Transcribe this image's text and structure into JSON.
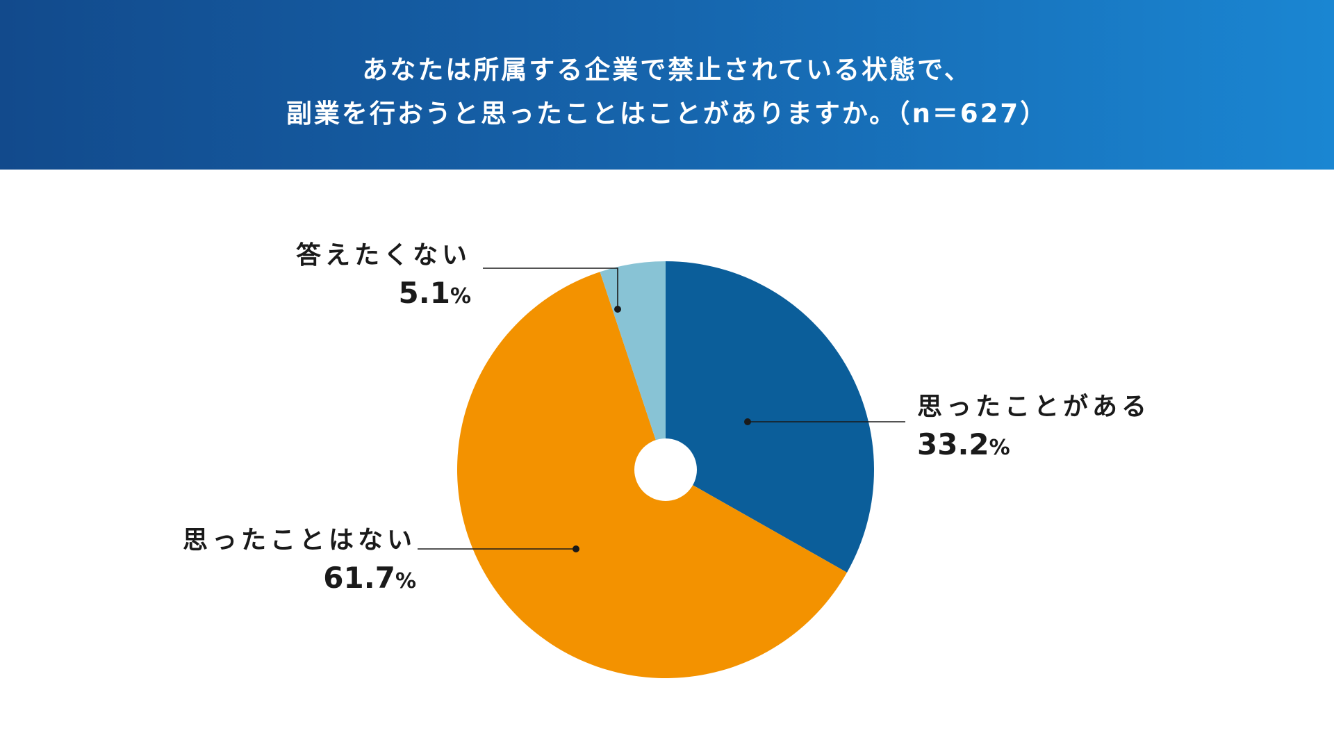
{
  "header": {
    "title_line1": "あなたは所属する企業で禁止されている状態で、",
    "title_line2": "副業を行おうと思ったことはことがありますか。（n＝627）"
  },
  "chart_data": {
    "type": "pie",
    "title": "あなたは所属する企業で禁止されている状態で、副業を行おうと思ったことはことがありますか。（n＝627）",
    "n": 627,
    "slices": [
      {
        "label": "思ったことがある",
        "value": 33.2,
        "display": "33.2",
        "color": "#0b5e9a"
      },
      {
        "label": "思ったことはない",
        "value": 61.7,
        "display": "61.7",
        "color": "#f39200"
      },
      {
        "label": "答えたくない",
        "value": 5.1,
        "display": "5.1",
        "color": "#88c3d5"
      }
    ],
    "unit": "%"
  }
}
